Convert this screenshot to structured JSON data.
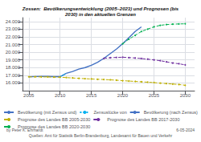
{
  "chart_data": {
    "type": "line",
    "title": "Zossen:  Bevölkerungsentwicklung (2005–2023) und Prognosen (bis\n2030) in den aktuellen Grenzen",
    "annotations": [
      "by Peter K. Ehrhardt",
      "Quellen: Amt für Statistik Berlin-Brandenburg, Landesamt für Bauen und Verkehr",
      "6-05-2024"
    ],
    "xlim": [
      2004.0,
      2031.5
    ],
    "xticks": [
      2005,
      2010,
      2015,
      2020,
      2025,
      2030
    ],
    "ylim": [
      15000,
      24500
    ],
    "yticks": [
      {
        "value": 16000,
        "label": "16.000"
      },
      {
        "value": 17000,
        "label": "17.000"
      },
      {
        "value": 18000,
        "label": "18.000"
      },
      {
        "value": 19000,
        "label": "19.000"
      },
      {
        "value": 20000,
        "label": "20.000"
      },
      {
        "value": 21000,
        "label": "21.000"
      },
      {
        "value": 22000,
        "label": "22.000"
      },
      {
        "value": 23000,
        "label": "23.000"
      },
      {
        "value": 24000,
        "label": "24.000"
      }
    ],
    "grid": true,
    "legend": "bottom",
    "series": [
      {
        "name": "Bevölkerung (mit Zensus und)",
        "color": "#4472c4",
        "line_style": "solid",
        "x": [
          2005,
          2006,
          2007,
          2008,
          2009,
          2010,
          2011
        ],
        "values": [
          16800,
          16840,
          16870,
          16860,
          16830,
          16820,
          17250
        ]
      },
      {
        "name": "Zensuslücke von",
        "color": "#00b0f0",
        "line_style": "dotted",
        "x": [
          2010,
          2011
        ],
        "values": [
          16820,
          17250
        ]
      },
      {
        "name": "Bevölkerung (nach Zensus)",
        "color": "#4472c4",
        "line_style": "solid",
        "x": [
          2011,
          2012,
          2013,
          2014,
          2015,
          2016,
          2017,
          2018,
          2019,
          2020,
          2021,
          2022,
          2023
        ],
        "values": [
          17250,
          17500,
          17800,
          18000,
          18300,
          18700,
          19200,
          19800,
          20400,
          21100,
          21900,
          22700,
          23300
        ]
      },
      {
        "name": "Prognose des Landes BB 2005-2030",
        "color": "#bfb000",
        "line_style": "dashed",
        "marker": "dot",
        "x": [
          2005,
          2006,
          2007,
          2008,
          2009,
          2010,
          2011,
          2012,
          2013,
          2014,
          2015,
          2016,
          2017,
          2018,
          2019,
          2020,
          2021,
          2022,
          2023,
          2024,
          2025,
          2026,
          2027,
          2028,
          2029,
          2030
        ],
        "values": [
          16800,
          16800,
          16790,
          16780,
          16760,
          16750,
          16700,
          16650,
          16600,
          16560,
          16520,
          16480,
          16450,
          16410,
          16360,
          16300,
          16250,
          16200,
          16150,
          16100,
          16050,
          15980,
          15920,
          15860,
          15800,
          15700
        ]
      },
      {
        "name": "Prognose des Landes BB 2017-2030",
        "color": "#7030a0",
        "line_style": "dashed",
        "marker": "dot",
        "x": [
          2017,
          2018,
          2019,
          2020,
          2021,
          2022,
          2023,
          2024,
          2025,
          2026,
          2027,
          2028,
          2029,
          2030
        ],
        "values": [
          19200,
          19280,
          19320,
          19350,
          19300,
          19250,
          19180,
          19100,
          19000,
          18900,
          18750,
          18600,
          18500,
          18350
        ]
      },
      {
        "name": "Prognose des Landes BB 2020-2030",
        "color": "#00b050",
        "line_style": "dashed",
        "marker": "dot",
        "x": [
          2020,
          2021,
          2022,
          2023,
          2024,
          2025,
          2026,
          2027,
          2028,
          2029,
          2030
        ],
        "values": [
          21100,
          21700,
          22200,
          22700,
          23000,
          23300,
          23500,
          23600,
          23650,
          23680,
          23700
        ]
      }
    ]
  }
}
